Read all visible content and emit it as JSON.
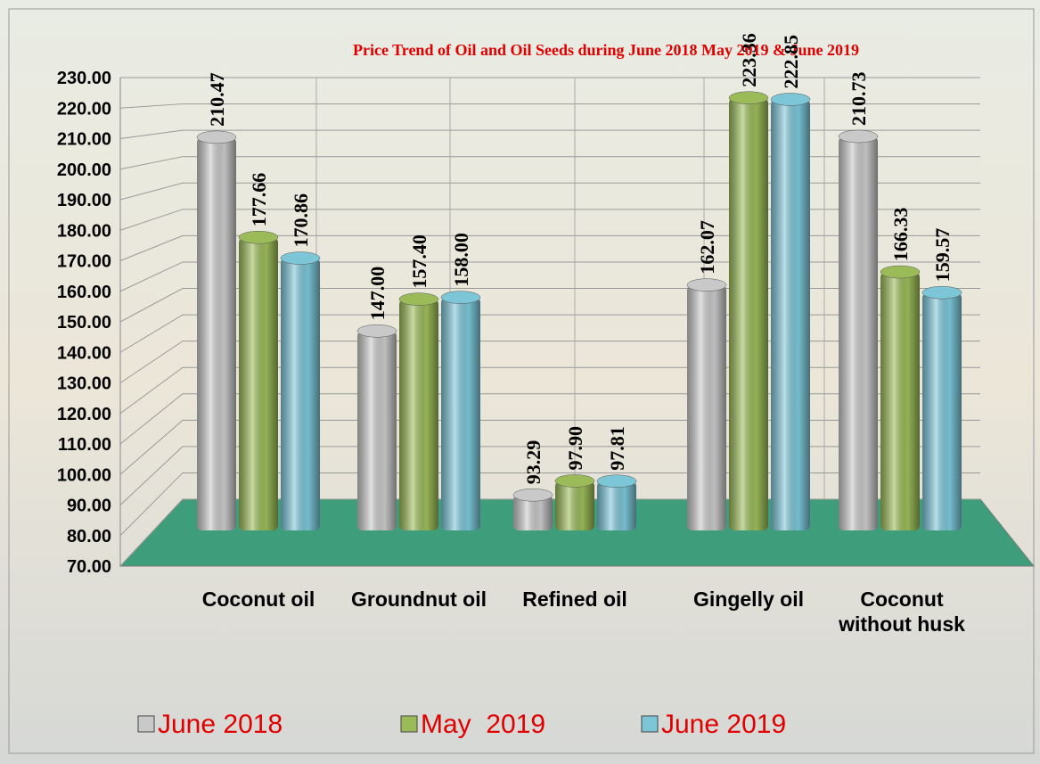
{
  "chart_data": {
    "type": "bar",
    "title": "Price Trend of Oil and Oil Seeds during  June  2018  May 2019 &  June  2019",
    "categories": [
      "Coconut oil",
      "Groundnut oil",
      "Refined oil",
      "Gingelly oil",
      "Coconut without husk"
    ],
    "series": [
      {
        "name": "June 2018",
        "color": "#c9c9c9",
        "values": [
          210.47,
          147,
          93.29,
          162.07,
          210.73
        ],
        "value_labels": [
          "210.47",
          "147.00",
          "93.29",
          "162.07",
          "210.73"
        ]
      },
      {
        "name": "May  2019",
        "color": "#9bbb59",
        "values": [
          177.66,
          157.4,
          97.9,
          223.36,
          166.33
        ],
        "value_labels": [
          "177.66",
          "157.40",
          "97.90",
          "223.36",
          "166.33"
        ]
      },
      {
        "name": "June 2019",
        "color": "#7cc6d8",
        "values": [
          170.86,
          158,
          97.81,
          222.85,
          159.57
        ],
        "value_labels": [
          "170.86",
          "158.00",
          "97.81",
          "222.85",
          "159.57"
        ]
      }
    ],
    "ylim": [
      70,
      230
    ],
    "yticks": [
      {
        "value": 70,
        "label": "70.00"
      },
      {
        "value": 80,
        "label": "80.00"
      },
      {
        "value": 90,
        "label": "90.00"
      },
      {
        "value": 100,
        "label": "100.00"
      },
      {
        "value": 110,
        "label": "110.00"
      },
      {
        "value": 120,
        "label": "120.00"
      },
      {
        "value": 130,
        "label": "130.00"
      },
      {
        "value": 140,
        "label": "140.00"
      },
      {
        "value": 150,
        "label": "150.00"
      },
      {
        "value": 160,
        "label": "160.00"
      },
      {
        "value": 170,
        "label": "170.00"
      },
      {
        "value": 180,
        "label": "180.00"
      },
      {
        "value": 190,
        "label": "190.00"
      },
      {
        "value": 200,
        "label": "200.00"
      },
      {
        "value": 210,
        "label": "210.00"
      },
      {
        "value": 220,
        "label": "220.00"
      },
      {
        "value": 230,
        "label": "230.00"
      }
    ],
    "grid": true
  }
}
